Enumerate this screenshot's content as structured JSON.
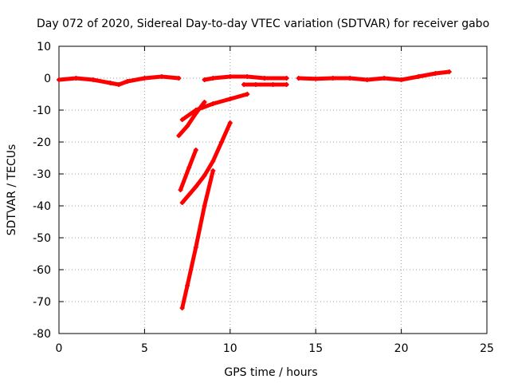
{
  "chart_data": {
    "type": "scatter",
    "title": "Day 072 of 2020, Sidereal Day-to-day VTEC variation (SDTVAR) for receiver gabo",
    "xlabel": "GPS time / hours",
    "ylabel": "SDTVAR / TECUs",
    "xlim": [
      0,
      25
    ],
    "ylim": [
      -80,
      10
    ],
    "xticks": [
      "0",
      "5",
      "10",
      "15",
      "20",
      "25"
    ],
    "yticks": [
      "10",
      "0",
      "-10",
      "-20",
      "-30",
      "-40",
      "-50",
      "-60",
      "-70",
      "-80"
    ],
    "grid": true,
    "legend": "none",
    "marker_color": "#ff0000",
    "series": [
      {
        "x": [
          0,
          1,
          2,
          3,
          3.5,
          4,
          5,
          6,
          7
        ],
        "y": [
          -0.5,
          0,
          -0.5,
          -1.5,
          -2,
          -1,
          0,
          0.5,
          0
        ]
      },
      {
        "x": [
          8.5,
          9,
          10,
          11,
          12,
          13.3
        ],
        "y": [
          -0.5,
          0,
          0.5,
          0.5,
          0,
          0
        ]
      },
      {
        "x": [
          10.8,
          11.5,
          12.5,
          13.3
        ],
        "y": [
          -2,
          -2,
          -2,
          -2
        ]
      },
      {
        "x": [
          14,
          15,
          16,
          17,
          18,
          19,
          20,
          21,
          22,
          22.8
        ],
        "y": [
          0,
          -0.2,
          0,
          0,
          -0.5,
          0,
          -0.5,
          0.5,
          1.5,
          2
        ]
      },
      {
        "x": [
          7.2,
          8,
          9,
          10,
          11
        ],
        "y": [
          -13,
          -10,
          -8,
          -6.5,
          -5
        ]
      },
      {
        "x": [
          7,
          7.5,
          8,
          8.5
        ],
        "y": [
          -18,
          -15,
          -11,
          -7.5
        ]
      },
      {
        "x": [
          7.1,
          7.6,
          8.0
        ],
        "y": [
          -35,
          -28,
          -22.5
        ]
      },
      {
        "x": [
          7.2,
          8,
          8.5,
          9,
          9.5,
          10
        ],
        "y": [
          -39,
          -34,
          -30.5,
          -26,
          -20,
          -14
        ]
      },
      {
        "x": [
          7.2,
          7.5,
          8,
          8.5,
          9
        ],
        "y": [
          -72,
          -65,
          -53,
          -40,
          -29
        ]
      }
    ]
  }
}
